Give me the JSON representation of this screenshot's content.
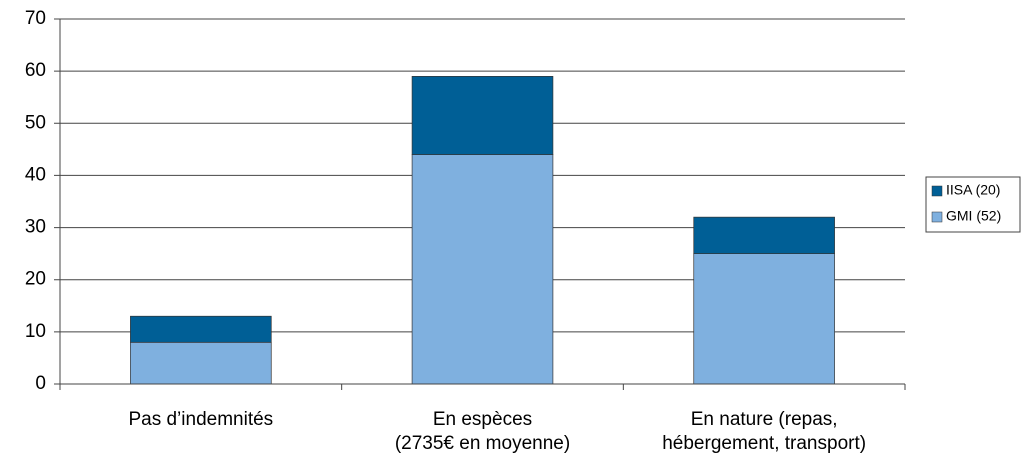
{
  "chart_data": {
    "type": "stacked_bar",
    "categories": [
      "Pas d’indemnités",
      "En espèces\n(2735€ en moyenne)",
      "En nature (repas,\nhébergement, transport)"
    ],
    "series": [
      {
        "name": "GMI (52)",
        "color": "#7fb0df",
        "values": [
          8,
          44,
          25
        ]
      },
      {
        "name": "IISA (20)",
        "color": "#005f96",
        "values": [
          5,
          15,
          7
        ]
      }
    ],
    "ylim": [
      0,
      70
    ],
    "yticks": [
      0,
      10,
      20,
      30,
      40,
      50,
      60,
      70
    ],
    "grid": true,
    "legend": "right"
  }
}
